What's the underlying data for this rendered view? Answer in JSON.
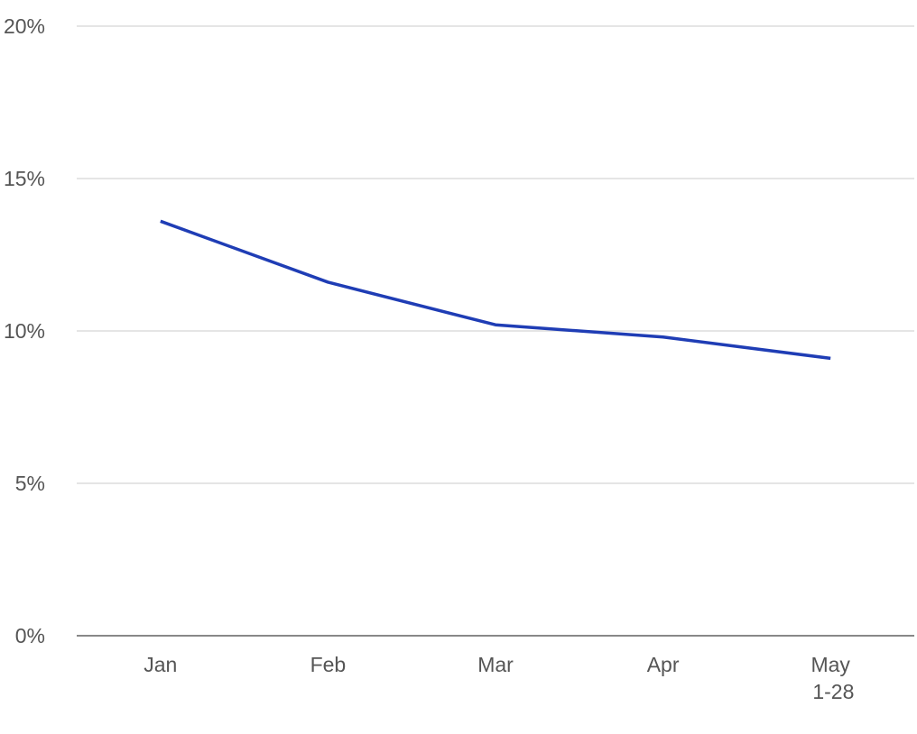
{
  "chart_data": {
    "type": "line",
    "categories": [
      "Jan",
      "Feb",
      "Mar",
      "Apr",
      "May 1-28"
    ],
    "series": [
      {
        "color": "#1f3db5",
        "values": [
          13.6,
          11.6,
          10.2,
          9.8,
          9.1
        ]
      }
    ],
    "ylim": [
      0,
      20
    ],
    "yticks": [
      {
        "value": 0,
        "label": "0%"
      },
      {
        "value": 5,
        "label": "5%"
      },
      {
        "value": 10,
        "label": "10%"
      },
      {
        "value": 15,
        "label": "15%"
      },
      {
        "value": 20,
        "label": "20%"
      }
    ],
    "grid": true
  }
}
